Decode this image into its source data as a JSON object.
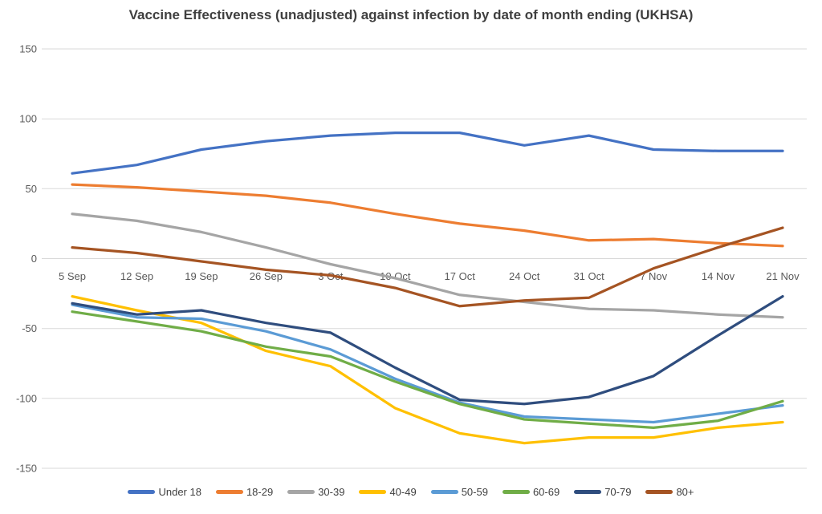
{
  "title": "Vaccine Effectiveness (unadjusted) against infection by date of month ending (UKHSA)",
  "chart_data": {
    "type": "line",
    "title": "Vaccine Effectiveness (unadjusted) against infection by date of month ending (UKHSA)",
    "categories": [
      "5 Sep",
      "12 Sep",
      "19 Sep",
      "26 Sep",
      "3 Oct",
      "10 Oct",
      "17 Oct",
      "24 Oct",
      "31 Oct",
      "7 Nov",
      "14 Nov",
      "21 Nov"
    ],
    "series": [
      {
        "name": "Under 18",
        "color": "#4472C4",
        "values": [
          61,
          67,
          78,
          84,
          88,
          90,
          90,
          81,
          88,
          78,
          77,
          77
        ]
      },
      {
        "name": "18-29",
        "color": "#ED7D31",
        "values": [
          53,
          51,
          48,
          45,
          40,
          32,
          25,
          20,
          13,
          14,
          11,
          9
        ]
      },
      {
        "name": "30-39",
        "color": "#A5A5A5",
        "values": [
          32,
          27,
          19,
          8,
          -4,
          -14,
          -26,
          -31,
          -36,
          -37,
          -40,
          -42
        ]
      },
      {
        "name": "40-49",
        "color": "#FFC000",
        "values": [
          -27,
          -37,
          -46,
          -66,
          -77,
          -107,
          -125,
          -132,
          -128,
          -128,
          -121,
          -117
        ]
      },
      {
        "name": "50-59",
        "color": "#5B9BD5",
        "values": [
          -33,
          -42,
          -43,
          -52,
          -65,
          -86,
          -103,
          -113,
          -115,
          -117,
          -111,
          -105
        ]
      },
      {
        "name": "60-69",
        "color": "#70AD47",
        "values": [
          -38,
          -45,
          -52,
          -63,
          -70,
          -88,
          -104,
          -115,
          -118,
          -121,
          -116,
          -102
        ]
      },
      {
        "name": "70-79",
        "color": "#2F4D7E",
        "values": [
          -32,
          -40,
          -37,
          -46,
          -53,
          -78,
          -101,
          -104,
          -99,
          -84,
          -55,
          -27
        ]
      },
      {
        "name": "80+",
        "color": "#A55423",
        "values": [
          8,
          4,
          -2,
          -8,
          -12,
          -21,
          -34,
          -30,
          -28,
          -7,
          8,
          22
        ]
      }
    ],
    "ylim": [
      -150,
      150
    ],
    "y_ticks": [
      150,
      100,
      50,
      0,
      -50,
      -100,
      -150
    ],
    "y_tick_labels": [
      "150",
      "100",
      "50",
      "0",
      "-50",
      "-100",
      "-150"
    ],
    "xlabel": "",
    "ylabel": "",
    "grid": true,
    "legend_position": "bottom"
  },
  "colors": {
    "background": "#FFFFFF",
    "gridline": "#D9D9D9",
    "axis_text": "#595959",
    "title_text": "#3F3F3F",
    "legend_text": "#404040"
  }
}
